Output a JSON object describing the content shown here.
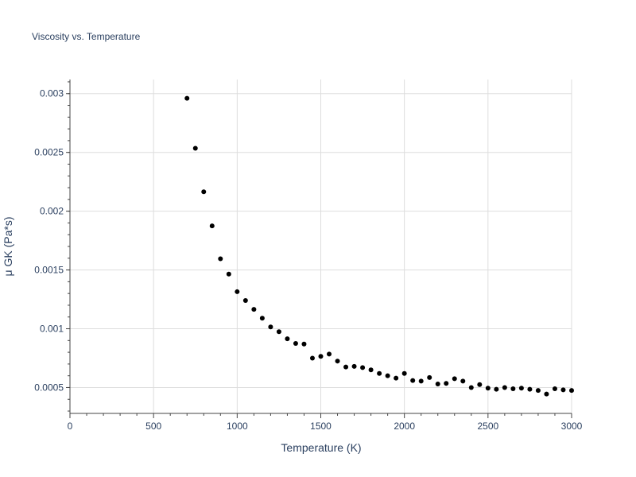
{
  "chart_data": {
    "type": "scatter",
    "title": "Viscosity vs. Temperature",
    "xlabel": "Temperature (K)",
    "ylabel": "μ GK (Pa*s)",
    "xlim": [
      0,
      3000
    ],
    "ylim": [
      0.00028,
      0.00312
    ],
    "x_ticks": [
      0,
      500,
      1000,
      1500,
      2000,
      2500,
      3000
    ],
    "x_tick_labels": [
      "0",
      "500",
      "1000",
      "1500",
      "2000",
      "2500",
      "3000"
    ],
    "y_ticks": [
      0.0005,
      0.001,
      0.0015,
      0.002,
      0.0025,
      0.003
    ],
    "y_tick_labels": [
      "0.0005",
      "0.001",
      "0.0015",
      "0.002",
      "0.0025",
      "0.003"
    ],
    "grid": true,
    "marker_color": "#000000",
    "series": [
      {
        "name": "μ GK",
        "x": [
          700,
          750,
          800,
          850,
          900,
          950,
          1000,
          1050,
          1100,
          1150,
          1200,
          1250,
          1300,
          1350,
          1400,
          1450,
          1500,
          1550,
          1600,
          1650,
          1700,
          1750,
          1800,
          1850,
          1900,
          1950,
          2000,
          2050,
          2100,
          2150,
          2200,
          2250,
          2300,
          2350,
          2400,
          2450,
          2500,
          2550,
          2600,
          2650,
          2700,
          2750,
          2800,
          2850,
          2900,
          2950,
          3000
        ],
        "y": [
          0.00296,
          0.002535,
          0.002165,
          0.001875,
          0.001595,
          0.001465,
          0.001315,
          0.00124,
          0.001165,
          0.00109,
          0.001015,
          0.000975,
          0.000915,
          0.000875,
          0.00087,
          0.00075,
          0.000765,
          0.000785,
          0.000725,
          0.000675,
          0.00068,
          0.00067,
          0.00065,
          0.00062,
          0.0006,
          0.00058,
          0.00062,
          0.00056,
          0.000555,
          0.000585,
          0.00053,
          0.000535,
          0.000575,
          0.000555,
          0.0005,
          0.000525,
          0.000495,
          0.000485,
          0.0005,
          0.00049,
          0.000495,
          0.000485,
          0.000475,
          0.000445,
          0.00049,
          0.00048,
          0.000475
        ]
      }
    ]
  }
}
